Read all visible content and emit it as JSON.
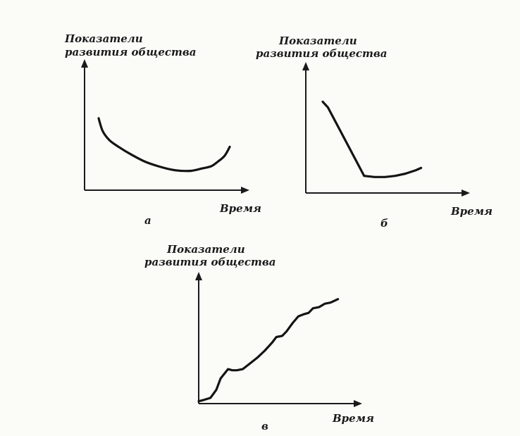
{
  "chart_data": [
    {
      "type": "line",
      "panel_label": "а",
      "ylabel_line1": "Показатели",
      "ylabel_line2": "развития общества",
      "xlabel": "Время",
      "xlim": [
        0,
        100
      ],
      "ylim": [
        0,
        100
      ],
      "series": [
        {
          "x": [
            0,
            3,
            8,
            15,
            25,
            35,
            45,
            55,
            62,
            70,
            78,
            85,
            90,
            95,
            99
          ],
          "y": [
            63,
            52,
            44,
            38,
            31,
            25,
            21,
            18,
            17,
            17,
            19,
            21,
            25,
            30,
            38
          ]
        }
      ]
    },
    {
      "type": "line",
      "panel_label": "б",
      "ylabel_line1": "Показатели",
      "ylabel_line2": "развития общества",
      "xlabel": "Время",
      "xlim": [
        0,
        100
      ],
      "ylim": [
        0,
        100
      ],
      "series": [
        {
          "x": [
            0,
            5,
            40,
            50,
            60,
            70,
            80,
            90,
            95
          ],
          "y": [
            80,
            75,
            15,
            14,
            14,
            15,
            17,
            20,
            22
          ]
        }
      ]
    },
    {
      "type": "line",
      "panel_label": "в",
      "ylabel_line1": "Показатели",
      "ylabel_line2": "развития общества",
      "xlabel": "Время",
      "xlim": [
        0,
        100
      ],
      "ylim": [
        0,
        100
      ],
      "series": [
        {
          "x": [
            0,
            3,
            8,
            12,
            15,
            20,
            23,
            26,
            30,
            35,
            40,
            45,
            50,
            53,
            57,
            60,
            64,
            68,
            72,
            75,
            78,
            82,
            86,
            90,
            95
          ],
          "y": [
            2,
            3,
            5,
            12,
            22,
            30,
            29,
            29,
            30,
            35,
            40,
            46,
            53,
            58,
            59,
            63,
            70,
            76,
            78,
            79,
            83,
            84,
            87,
            88,
            91
          ]
        }
      ]
    }
  ]
}
